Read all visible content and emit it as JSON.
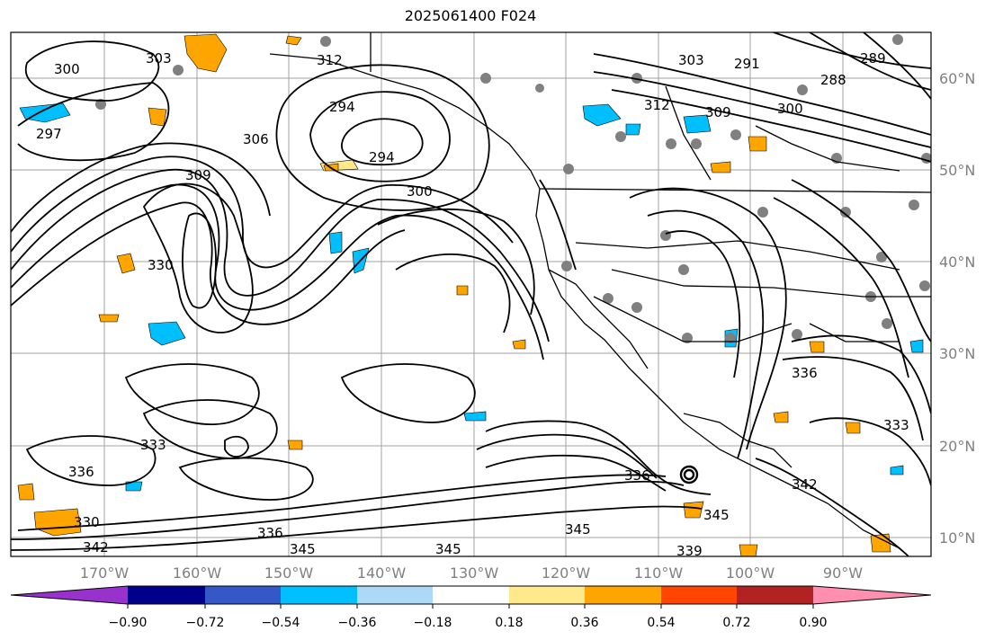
{
  "title": "2025061400 F024",
  "lat_labels": [
    "60°N",
    "50°N",
    "40°N",
    "30°N",
    "20°N",
    "10°N"
  ],
  "lon_labels": [
    "170°W",
    "160°W",
    "150°W",
    "140°W",
    "130°W",
    "120°W",
    "110°W",
    "100°W",
    "90°W"
  ],
  "colorbar": {
    "tick_labels": [
      "−0.90",
      "−0.72",
      "−0.54",
      "−0.36",
      "−0.18",
      "0.18",
      "0.36",
      "0.54",
      "0.72",
      "0.90"
    ],
    "colors": [
      "#9932cc",
      "#00008b",
      "#3458c8",
      "#00bfff",
      "#add8f7",
      "#ffffff",
      "#ffe98a",
      "#ffa500",
      "#ff4500",
      "#b22222",
      "#ff8fb0"
    ]
  },
  "contour_labels": [
    "297",
    "300",
    "303",
    "306",
    "309",
    "312",
    "294",
    "294",
    "300",
    "330",
    "336",
    "333",
    "336",
    "330",
    "342",
    "345",
    "345",
    "345",
    "339",
    "336",
    "345",
    "303",
    "309",
    "312",
    "291",
    "288",
    "289",
    "300",
    "336",
    "333",
    "342"
  ],
  "colors": {
    "contour": "#000000",
    "grid": "#a0a0a0",
    "station_dot": "#808080",
    "coast": "#000000"
  }
}
